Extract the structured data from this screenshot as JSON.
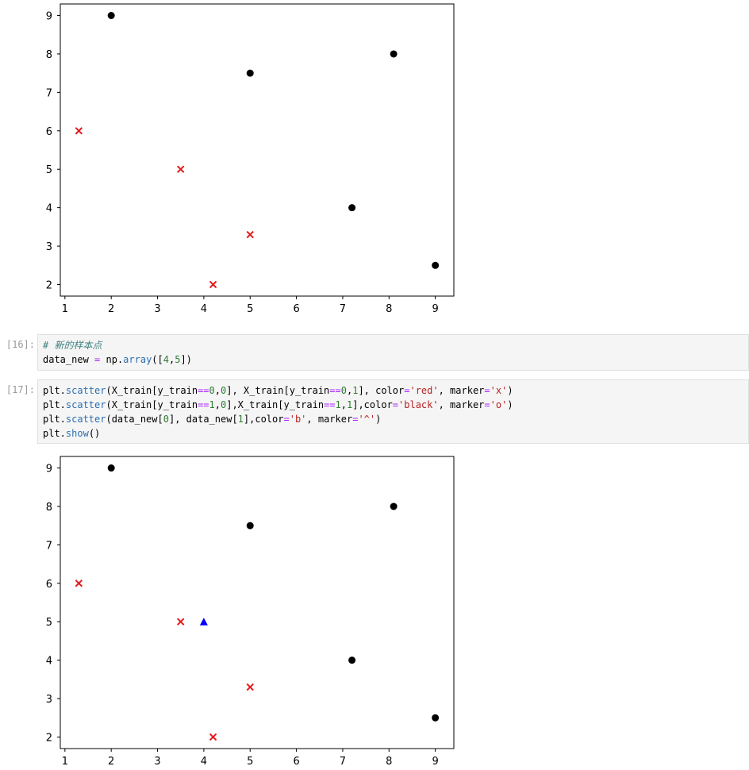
{
  "notebook": {
    "cells": [
      {
        "prompt": "[16]:",
        "code_lines": [
          [
            {
              "t": "comment",
              "v": "# 新的样本点"
            }
          ],
          [
            {
              "t": "plain",
              "v": "data_new "
            },
            {
              "t": "op",
              "v": "="
            },
            {
              "t": "plain",
              "v": " np."
            },
            {
              "t": "fn",
              "v": "array"
            },
            {
              "t": "plain",
              "v": "(["
            },
            {
              "t": "num",
              "v": "4"
            },
            {
              "t": "plain",
              "v": ","
            },
            {
              "t": "num",
              "v": "5"
            },
            {
              "t": "plain",
              "v": "])"
            }
          ]
        ]
      },
      {
        "prompt": "[17]:",
        "code_lines": [
          [
            {
              "t": "plain",
              "v": "plt."
            },
            {
              "t": "fn",
              "v": "scatter"
            },
            {
              "t": "plain",
              "v": "(X_train[y_train"
            },
            {
              "t": "op",
              "v": "=="
            },
            {
              "t": "num",
              "v": "0"
            },
            {
              "t": "plain",
              "v": ","
            },
            {
              "t": "num",
              "v": "0"
            },
            {
              "t": "plain",
              "v": "], X_train[y_train"
            },
            {
              "t": "op",
              "v": "=="
            },
            {
              "t": "num",
              "v": "0"
            },
            {
              "t": "plain",
              "v": ","
            },
            {
              "t": "num",
              "v": "1"
            },
            {
              "t": "plain",
              "v": "], color"
            },
            {
              "t": "op",
              "v": "="
            },
            {
              "t": "str",
              "v": "'red'"
            },
            {
              "t": "plain",
              "v": ", marker"
            },
            {
              "t": "op",
              "v": "="
            },
            {
              "t": "str",
              "v": "'x'"
            },
            {
              "t": "plain",
              "v": ")"
            }
          ],
          [
            {
              "t": "plain",
              "v": "plt."
            },
            {
              "t": "fn",
              "v": "scatter"
            },
            {
              "t": "plain",
              "v": "(X_train[y_train"
            },
            {
              "t": "op",
              "v": "=="
            },
            {
              "t": "num",
              "v": "1"
            },
            {
              "t": "plain",
              "v": ","
            },
            {
              "t": "num",
              "v": "0"
            },
            {
              "t": "plain",
              "v": "],X_train[y_train"
            },
            {
              "t": "op",
              "v": "=="
            },
            {
              "t": "num",
              "v": "1"
            },
            {
              "t": "plain",
              "v": ","
            },
            {
              "t": "num",
              "v": "1"
            },
            {
              "t": "plain",
              "v": "],color"
            },
            {
              "t": "op",
              "v": "="
            },
            {
              "t": "str",
              "v": "'black'"
            },
            {
              "t": "plain",
              "v": ", marker"
            },
            {
              "t": "op",
              "v": "="
            },
            {
              "t": "str",
              "v": "'o'"
            },
            {
              "t": "plain",
              "v": ")"
            }
          ],
          [
            {
              "t": "plain",
              "v": "plt."
            },
            {
              "t": "fn",
              "v": "scatter"
            },
            {
              "t": "plain",
              "v": "(data_new["
            },
            {
              "t": "num",
              "v": "0"
            },
            {
              "t": "plain",
              "v": "], data_new["
            },
            {
              "t": "num",
              "v": "1"
            },
            {
              "t": "plain",
              "v": "],color"
            },
            {
              "t": "op",
              "v": "="
            },
            {
              "t": "str",
              "v": "'b'"
            },
            {
              "t": "plain",
              "v": ", marker"
            },
            {
              "t": "op",
              "v": "="
            },
            {
              "t": "str",
              "v": "'^'"
            },
            {
              "t": "plain",
              "v": ")"
            }
          ],
          [
            {
              "t": "plain",
              "v": "plt."
            },
            {
              "t": "fn",
              "v": "show"
            },
            {
              "t": "plain",
              "v": "()"
            }
          ]
        ]
      }
    ]
  },
  "chart_data": [
    {
      "type": "scatter",
      "xlim": [
        0.9,
        9.4
      ],
      "ylim": [
        1.7,
        9.3
      ],
      "x_ticks": [
        1,
        2,
        3,
        4,
        5,
        6,
        7,
        8,
        9
      ],
      "y_ticks": [
        2,
        3,
        4,
        5,
        6,
        7,
        8,
        9
      ],
      "grid": false,
      "series": [
        {
          "marker": "x",
          "color": "#e41a1c",
          "points": [
            [
              1.3,
              6
            ],
            [
              3.5,
              5
            ],
            [
              4.2,
              2
            ],
            [
              5,
              3.3
            ]
          ]
        },
        {
          "marker": "o",
          "color": "#000000",
          "points": [
            [
              2,
              9
            ],
            [
              5,
              7.5
            ],
            [
              7.2,
              4
            ],
            [
              8.1,
              8
            ],
            [
              9,
              2.5
            ]
          ]
        }
      ]
    },
    {
      "type": "scatter",
      "xlim": [
        0.9,
        9.4
      ],
      "ylim": [
        1.7,
        9.3
      ],
      "x_ticks": [
        1,
        2,
        3,
        4,
        5,
        6,
        7,
        8,
        9
      ],
      "y_ticks": [
        2,
        3,
        4,
        5,
        6,
        7,
        8,
        9
      ],
      "grid": false,
      "series": [
        {
          "marker": "x",
          "color": "#e41a1c",
          "points": [
            [
              1.3,
              6
            ],
            [
              3.5,
              5
            ],
            [
              4.2,
              2
            ],
            [
              5,
              3.3
            ]
          ]
        },
        {
          "marker": "o",
          "color": "#000000",
          "points": [
            [
              2,
              9
            ],
            [
              5,
              7.5
            ],
            [
              7.2,
              4
            ],
            [
              8.1,
              8
            ],
            [
              9,
              2.5
            ]
          ]
        },
        {
          "marker": "^",
          "color": "#0000ff",
          "points": [
            [
              4,
              5
            ]
          ]
        }
      ]
    }
  ]
}
